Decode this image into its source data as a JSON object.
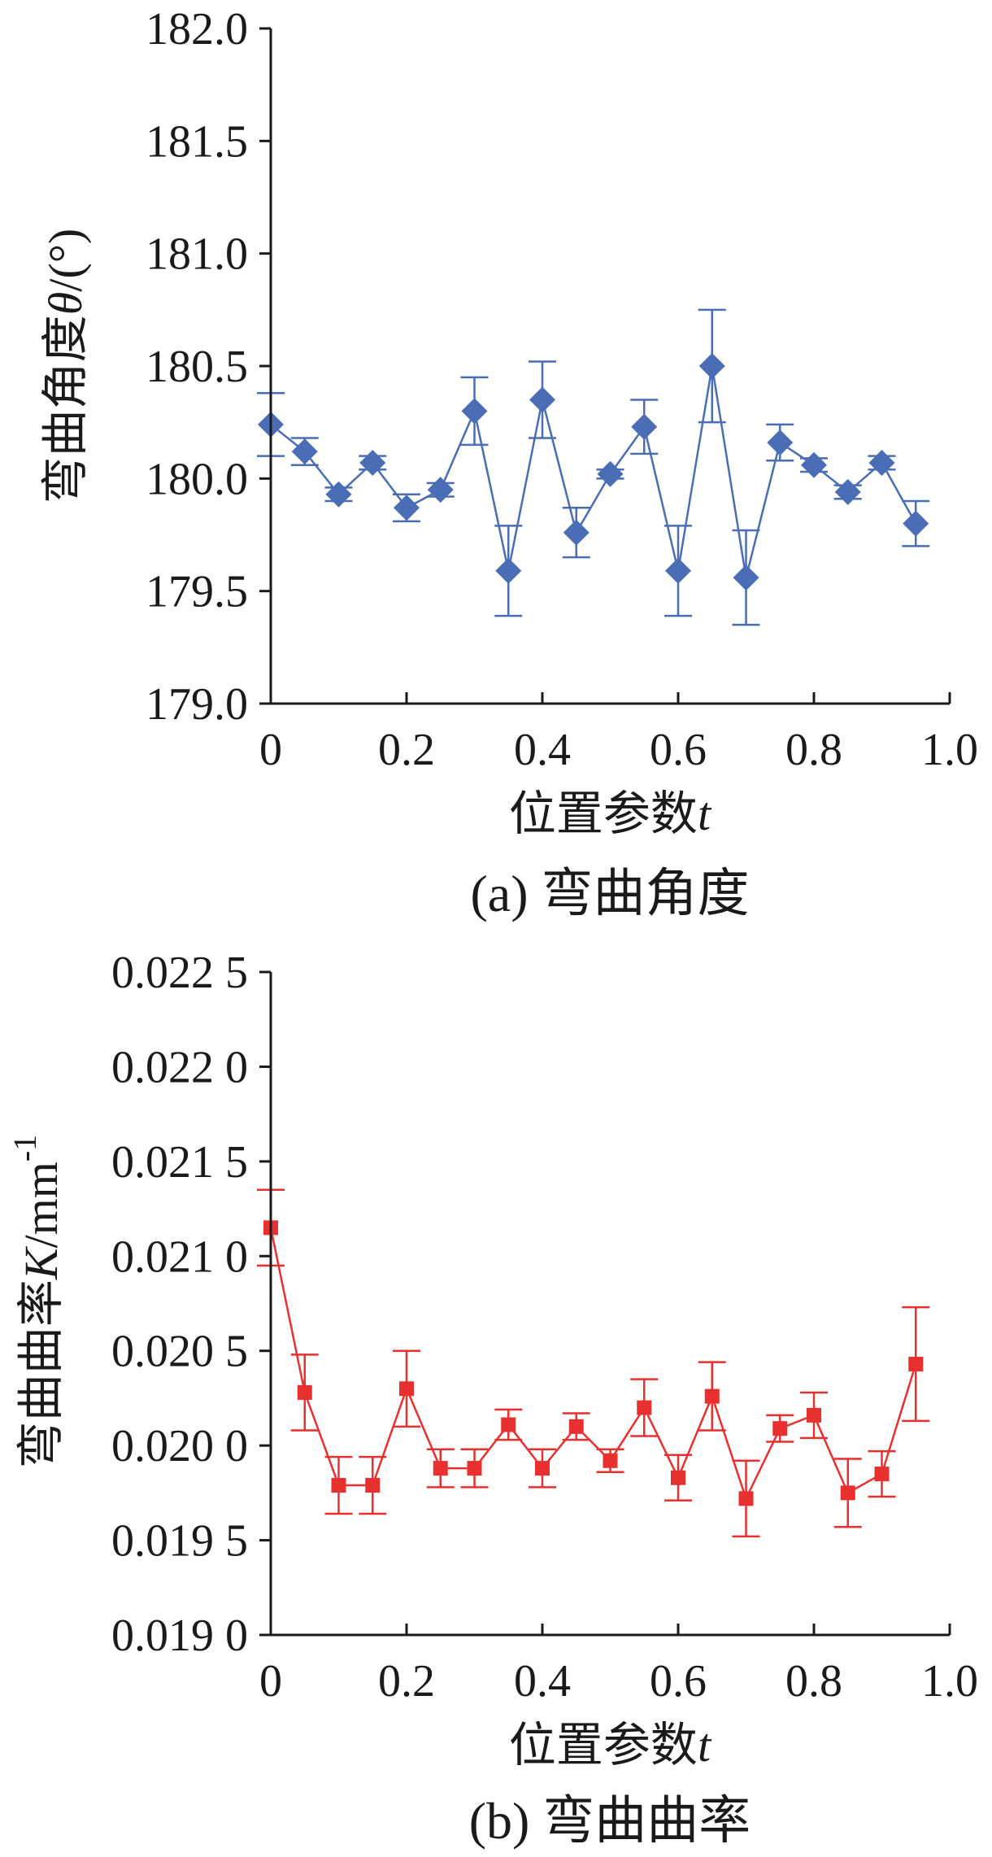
{
  "colors": {
    "series_a": "#4a6db5",
    "series_b": "#e8312f",
    "axis": "#1a1a1a"
  },
  "chart_data": [
    {
      "type": "line",
      "caption": "(a)  弯曲角度",
      "xlabel": "位置参数",
      "xlabel_var": "t",
      "ylabel": "弯曲角度",
      "ylabel_var": "θ",
      "ylabel_unit": "/(°)",
      "xlim": [
        0,
        1.0
      ],
      "ylim": [
        179.0,
        182.0
      ],
      "x_ticks": [
        "0",
        "0.2",
        "0.4",
        "0.6",
        "0.8",
        "1.0"
      ],
      "y_ticks": [
        "179.0",
        "179.5",
        "180.0",
        "180.5",
        "181.0",
        "181.5",
        "182.0"
      ],
      "marker": "diamond",
      "grid": false,
      "legend": "none",
      "series": [
        {
          "x": [
            0,
            0.05,
            0.1,
            0.15,
            0.2,
            0.25,
            0.3,
            0.35,
            0.4,
            0.45,
            0.5,
            0.55,
            0.6,
            0.65,
            0.7,
            0.75,
            0.8,
            0.85,
            0.9,
            0.95
          ],
          "values": [
            180.24,
            180.12,
            179.93,
            180.07,
            179.87,
            179.95,
            180.3,
            179.59,
            180.35,
            179.76,
            180.02,
            180.23,
            179.59,
            180.5,
            179.56,
            180.16,
            180.06,
            179.94,
            180.07,
            179.8
          ],
          "error": [
            0.14,
            0.06,
            0.03,
            0.03,
            0.06,
            0.03,
            0.15,
            0.2,
            0.17,
            0.11,
            0.02,
            0.12,
            0.2,
            0.25,
            0.21,
            0.08,
            0.03,
            0.03,
            0.03,
            0.1
          ]
        }
      ]
    },
    {
      "type": "line",
      "caption": "(b)  弯曲曲率",
      "xlabel": "位置参数",
      "xlabel_var": "t",
      "ylabel": "弯曲曲率",
      "ylabel_var": "K",
      "ylabel_unit": "/mm",
      "ylabel_exp": "-1",
      "xlim": [
        0,
        1.0
      ],
      "ylim": [
        0.019,
        0.0225
      ],
      "x_ticks": [
        "0",
        "0.2",
        "0.4",
        "0.6",
        "0.8",
        "1.0"
      ],
      "y_ticks": [
        "0.019 0",
        "0.019 5",
        "0.020 0",
        "0.020 5",
        "0.021 0",
        "0.021 5",
        "0.022 0",
        "0.022 5"
      ],
      "marker": "square",
      "grid": false,
      "legend": "none",
      "series": [
        {
          "x": [
            0,
            0.05,
            0.1,
            0.15,
            0.2,
            0.25,
            0.3,
            0.35,
            0.4,
            0.45,
            0.5,
            0.55,
            0.6,
            0.65,
            0.7,
            0.75,
            0.8,
            0.85,
            0.9,
            0.95
          ],
          "values": [
            0.02115,
            0.02028,
            0.01979,
            0.01979,
            0.0203,
            0.01988,
            0.01988,
            0.02011,
            0.01988,
            0.0201,
            0.01992,
            0.0202,
            0.01983,
            0.02026,
            0.01972,
            0.02009,
            0.02016,
            0.01975,
            0.01985,
            0.02043
          ],
          "error": [
            0.0002,
            0.0002,
            0.00015,
            0.00015,
            0.0002,
            0.0001,
            0.0001,
            8e-05,
            0.0001,
            7e-05,
            6e-05,
            0.00015,
            0.00012,
            0.00018,
            0.0002,
            7e-05,
            0.00012,
            0.00018,
            0.00012,
            0.0003
          ]
        }
      ]
    }
  ]
}
